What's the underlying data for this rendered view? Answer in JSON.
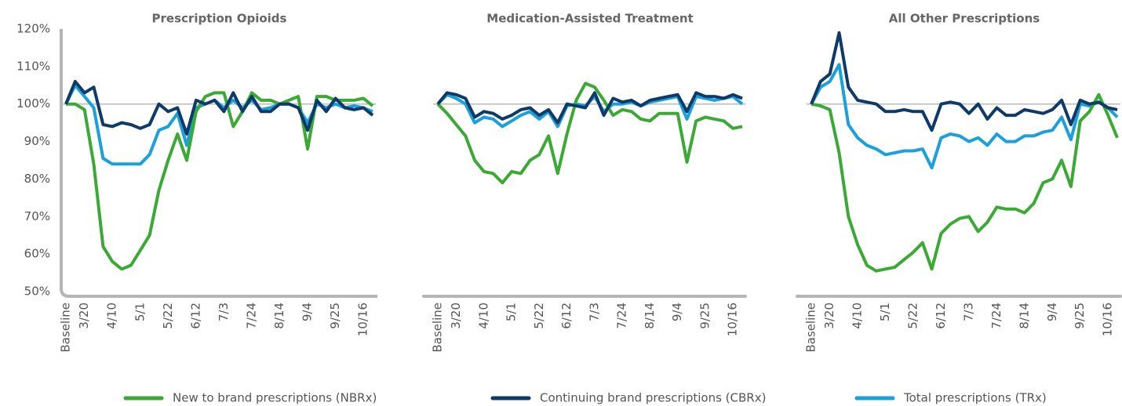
{
  "chart_data": [
    {
      "type": "line",
      "title": "Prescription Opioids",
      "categories": [
        "Baseline",
        null,
        "3/20",
        null,
        null,
        "4/10",
        null,
        null,
        "5/1",
        null,
        null,
        "5/22",
        null,
        null,
        "6/12",
        null,
        null,
        "7/3",
        null,
        null,
        "7/24",
        null,
        null,
        "8/14",
        null,
        null,
        "9/4",
        null,
        null,
        "9/25",
        null,
        null,
        "10/16",
        null
      ],
      "ylim": [
        50,
        120
      ],
      "yticks": [
        {
          "value": 50,
          "label": "50%"
        },
        {
          "value": 60,
          "label": "60%"
        },
        {
          "value": 70,
          "label": "70%"
        },
        {
          "value": 80,
          "label": "80%"
        },
        {
          "value": 90,
          "label": "90%"
        },
        {
          "value": 100,
          "label": "100%"
        },
        {
          "value": 110,
          "label": "110%"
        },
        {
          "value": 120,
          "label": "120%"
        }
      ],
      "reference_line": 100,
      "series": [
        {
          "name": "New to brand prescriptions (NBRx)",
          "color": "#3aaa35",
          "values": [
            100,
            100,
            98.5,
            84,
            62,
            58,
            56,
            57,
            61,
            65,
            77,
            85,
            92,
            85,
            98,
            102,
            103,
            103,
            94,
            98,
            103,
            101,
            101,
            100,
            101,
            102,
            88,
            102,
            102,
            101,
            101,
            101,
            101.5,
            99.5
          ]
        },
        {
          "name": "Continuing brand prescriptions (CBRx)",
          "color": "#0e3a69",
          "values": [
            100,
            106,
            103,
            104.5,
            94.5,
            94,
            95,
            94.5,
            93.5,
            94.5,
            100,
            98,
            99,
            92,
            101,
            100,
            101,
            98,
            103,
            98,
            102,
            98,
            98,
            100,
            100,
            99,
            93,
            101,
            98,
            101.5,
            99,
            98.5,
            99,
            97
          ]
        },
        {
          "name": "Total prescriptions (TRx)",
          "color": "#1aa0dc",
          "values": [
            100,
            105,
            102,
            99,
            85.5,
            84,
            84,
            84,
            84,
            86.5,
            93,
            94,
            97.5,
            89,
            99,
            100,
            101,
            99,
            101,
            99,
            101,
            98.5,
            99,
            100,
            100,
            99,
            95,
            100,
            99,
            100,
            99,
            99.5,
            99,
            98
          ]
        }
      ]
    },
    {
      "type": "line",
      "title": "Medication-Assisted Treatment",
      "categories": [
        "Baseline",
        null,
        "3/20",
        null,
        null,
        "4/10",
        null,
        null,
        "5/1",
        null,
        null,
        "5/22",
        null,
        null,
        "6/12",
        null,
        null,
        "7/3",
        null,
        null,
        "7/24",
        null,
        null,
        "8/14",
        null,
        null,
        "9/4",
        null,
        null,
        "9/25",
        null,
        null,
        "10/16",
        null
      ],
      "ylim": [
        50,
        120
      ],
      "reference_line": 100,
      "series": [
        {
          "name": "New to brand prescriptions (NBRx)",
          "color": "#3aaa35",
          "values": [
            100,
            97.5,
            94.5,
            91.5,
            85,
            82,
            81.5,
            79,
            82,
            81.5,
            85,
            86.5,
            91.5,
            81.5,
            92,
            101,
            105.5,
            104.5,
            101,
            97,
            98.5,
            98,
            96,
            95.5,
            97.5,
            97.5,
            97.5,
            84.5,
            95.5,
            96.5,
            96,
            95.5,
            93.5,
            94
          ]
        },
        {
          "name": "Continuing brand prescriptions (CBRx)",
          "color": "#0e3a69",
          "values": [
            100,
            103,
            102.5,
            101.5,
            96.5,
            98,
            97.5,
            96,
            97,
            98.5,
            99,
            97,
            98.5,
            95,
            100,
            99.5,
            99,
            103,
            97,
            101.5,
            100.5,
            101,
            99.5,
            101,
            101.5,
            102,
            102.5,
            98,
            103,
            102,
            102,
            101.5,
            102.5,
            101.5
          ]
        },
        {
          "name": "Total prescriptions (TRx)",
          "color": "#1aa0dc",
          "values": [
            100,
            102.5,
            101.5,
            100,
            95,
            96.5,
            96,
            94,
            95.5,
            97,
            98,
            96,
            98,
            94,
            99.5,
            100,
            99.5,
            102,
            98,
            100,
            100,
            100.5,
            99.5,
            100.5,
            101,
            101.5,
            102,
            96,
            102,
            101.5,
            101,
            101.5,
            102,
            100
          ]
        }
      ]
    },
    {
      "type": "line",
      "title": "All Other Prescriptions",
      "categories": [
        "Baseline",
        null,
        "3/20",
        null,
        null,
        "4/10",
        null,
        null,
        "5/1",
        null,
        null,
        "5/22",
        null,
        null,
        "6/12",
        null,
        null,
        "7/3",
        null,
        null,
        "7/24",
        null,
        null,
        "8/14",
        null,
        null,
        "9/4",
        null,
        null,
        "9/25",
        null,
        null,
        "10/16",
        null
      ],
      "ylim": [
        50,
        120
      ],
      "reference_line": 100,
      "series": [
        {
          "name": "New to brand prescriptions (NBRx)",
          "color": "#3aaa35",
          "values": [
            100,
            99.5,
            98.5,
            87,
            70,
            62.5,
            57,
            55.5,
            56,
            56.5,
            58.5,
            60.5,
            63,
            56,
            65.5,
            68,
            69.5,
            70,
            66,
            68.5,
            72.5,
            72,
            72,
            71,
            73.5,
            79,
            80,
            85,
            78,
            95.5,
            98,
            102.5,
            97,
            91
          ]
        },
        {
          "name": "Continuing brand prescriptions (CBRx)",
          "color": "#0e3a69",
          "values": [
            100,
            106,
            108,
            119,
            104.5,
            101,
            100.5,
            100,
            98,
            98,
            98.5,
            98,
            98,
            93,
            100,
            100.5,
            100,
            97.5,
            100,
            96,
            99,
            97,
            97,
            98.5,
            98,
            97.5,
            98.5,
            101,
            94.5,
            101,
            100,
            100.5,
            99,
            98.5
          ]
        },
        {
          "name": "Total prescriptions (TRx)",
          "color": "#1aa0dc",
          "values": [
            100,
            104.5,
            106,
            110.5,
            94.5,
            91,
            89,
            88,
            86.5,
            87,
            87.5,
            87.5,
            88,
            83,
            91,
            92,
            91.5,
            90,
            91,
            89,
            92,
            90,
            90,
            91.5,
            91.5,
            92.5,
            93,
            96.5,
            90.5,
            100,
            99.5,
            100.5,
            99,
            96.5
          ]
        }
      ]
    }
  ]
}
